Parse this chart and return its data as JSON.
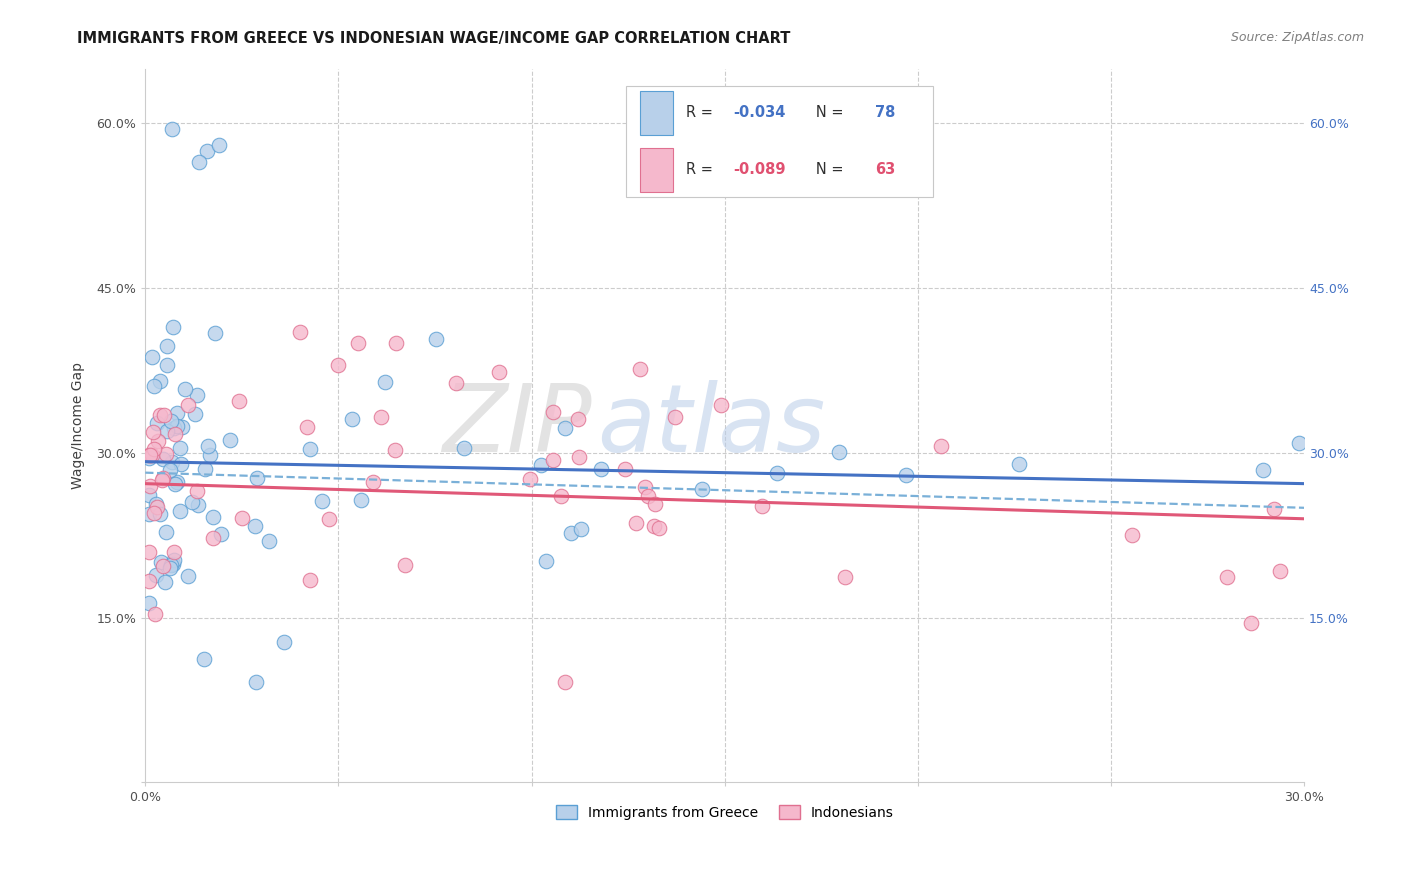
{
  "title": "IMMIGRANTS FROM GREECE VS INDONESIAN WAGE/INCOME GAP CORRELATION CHART",
  "source": "Source: ZipAtlas.com",
  "ylabel": "Wage/Income Gap",
  "xlim": [
    0.0,
    0.3
  ],
  "ylim": [
    0.0,
    0.65
  ],
  "xtick_vals": [
    0.0,
    0.05,
    0.1,
    0.15,
    0.2,
    0.25,
    0.3
  ],
  "xtick_labels": [
    "0.0%",
    "",
    "",
    "",
    "",
    "",
    "30.0%"
  ],
  "ytick_vals": [
    0.0,
    0.15,
    0.3,
    0.45,
    0.6
  ],
  "ytick_labels": [
    "",
    "15.0%",
    "30.0%",
    "45.0%",
    "60.0%"
  ],
  "right_ytick_vals": [
    0.15,
    0.3,
    0.45,
    0.6
  ],
  "right_ytick_labels": [
    "15.0%",
    "30.0%",
    "45.0%",
    "60.0%"
  ],
  "blue_fill": "#b8d0ea",
  "blue_edge": "#5a9fd4",
  "pink_fill": "#f5b8cc",
  "pink_edge": "#e07090",
  "trend_blue_color": "#4472c4",
  "trend_pink_color": "#e05878",
  "trend_dashed_color": "#7ab0d8",
  "watermark_ZIP": "#cccccc",
  "watermark_atlas": "#b8cce8",
  "right_axis_color": "#4472c4",
  "grid_color": "#cccccc",
  "title_fontsize": 10.5,
  "source_fontsize": 9,
  "tick_fontsize": 9,
  "blue_trend_start_y": 0.292,
  "blue_trend_end_y": 0.272,
  "pink_trend_start_y": 0.272,
  "pink_trend_end_y": 0.24,
  "dashed_trend_start_y": 0.282,
  "dashed_trend_end_y": 0.25,
  "legend_R1": "-0.034",
  "legend_N1": "78",
  "legend_R2": "-0.089",
  "legend_N2": "63"
}
